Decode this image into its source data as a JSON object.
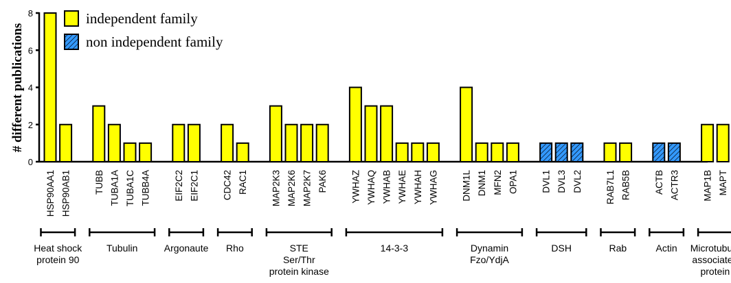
{
  "chart_data": {
    "type": "bar",
    "ylabel": "# different publications",
    "ylim": [
      0,
      8
    ],
    "yticks": [
      "0",
      "2",
      "4",
      "6",
      "8"
    ],
    "grid": false,
    "legend_position": "top-left",
    "legend": [
      {
        "name": "independent family",
        "key": "independent",
        "color": "#ffff00"
      },
      {
        "name": "non independent family",
        "key": "non-independent",
        "color": "#3399ff",
        "pattern": "hatched"
      }
    ],
    "groups": [
      {
        "label": [
          "Heat shock",
          "protein 90"
        ],
        "bars": [
          {
            "gene": "HSP90AA1",
            "value": 8,
            "family": "independent"
          },
          {
            "gene": "HSP90AB1",
            "value": 2,
            "family": "independent"
          }
        ]
      },
      {
        "label": [
          "Tubulin"
        ],
        "bars": [
          {
            "gene": "TUBB",
            "value": 3,
            "family": "independent"
          },
          {
            "gene": "TUBA1A",
            "value": 2,
            "family": "independent"
          },
          {
            "gene": "TUBA1C",
            "value": 1,
            "family": "independent"
          },
          {
            "gene": "TUBB4A",
            "value": 1,
            "family": "independent"
          }
        ]
      },
      {
        "label": [
          "Argonaute"
        ],
        "bars": [
          {
            "gene": "EIF2C2",
            "value": 2,
            "family": "independent"
          },
          {
            "gene": "EIF2C1",
            "value": 2,
            "family": "independent"
          }
        ]
      },
      {
        "label": [
          "Rho"
        ],
        "bars": [
          {
            "gene": "CDC42",
            "value": 2,
            "family": "independent"
          },
          {
            "gene": "RAC1",
            "value": 1,
            "family": "independent"
          }
        ]
      },
      {
        "label": [
          "STE",
          "Ser/Thr",
          "protein kinase"
        ],
        "bars": [
          {
            "gene": "MAP2K3",
            "value": 3,
            "family": "independent"
          },
          {
            "gene": "MAP2K6",
            "value": 2,
            "family": "independent"
          },
          {
            "gene": "MAP2K7",
            "value": 2,
            "family": "independent"
          },
          {
            "gene": "PAK6",
            "value": 2,
            "family": "independent"
          }
        ]
      },
      {
        "label": [
          "14-3-3"
        ],
        "bars": [
          {
            "gene": "YWHAZ",
            "value": 4,
            "family": "independent"
          },
          {
            "gene": "YWHAQ",
            "value": 3,
            "family": "independent"
          },
          {
            "gene": "YWHAB",
            "value": 3,
            "family": "independent"
          },
          {
            "gene": "YWHAE",
            "value": 1,
            "family": "independent"
          },
          {
            "gene": "YWHAH",
            "value": 1,
            "family": "independent"
          },
          {
            "gene": "YWHAG",
            "value": 1,
            "family": "independent"
          }
        ]
      },
      {
        "label": [
          "Dynamin",
          "Fzo/YdjA"
        ],
        "bars": [
          {
            "gene": "DNM1L",
            "value": 4,
            "family": "independent"
          },
          {
            "gene": "DNM1",
            "value": 1,
            "family": "independent"
          },
          {
            "gene": "MFN2",
            "value": 1,
            "family": "independent"
          },
          {
            "gene": "OPA1",
            "value": 1,
            "family": "independent"
          }
        ]
      },
      {
        "label": [
          "DSH"
        ],
        "bars": [
          {
            "gene": "DVL1",
            "value": 1,
            "family": "non-independent"
          },
          {
            "gene": "DVL3",
            "value": 1,
            "family": "non-independent"
          },
          {
            "gene": "DVL2",
            "value": 1,
            "family": "non-independent"
          }
        ]
      },
      {
        "label": [
          "Rab"
        ],
        "bars": [
          {
            "gene": "RAB7L1",
            "value": 1,
            "family": "independent"
          },
          {
            "gene": "RAB5B",
            "value": 1,
            "family": "independent"
          }
        ]
      },
      {
        "label": [
          "Actin"
        ],
        "bars": [
          {
            "gene": "ACTB",
            "value": 1,
            "family": "non-independent"
          },
          {
            "gene": "ACTR3",
            "value": 1,
            "family": "non-independent"
          }
        ]
      },
      {
        "label": [
          "Microtubule",
          "associated",
          "protein"
        ],
        "bars": [
          {
            "gene": "MAP1B",
            "value": 2,
            "family": "independent"
          },
          {
            "gene": "MAPT",
            "value": 2,
            "family": "independent"
          }
        ]
      }
    ]
  }
}
